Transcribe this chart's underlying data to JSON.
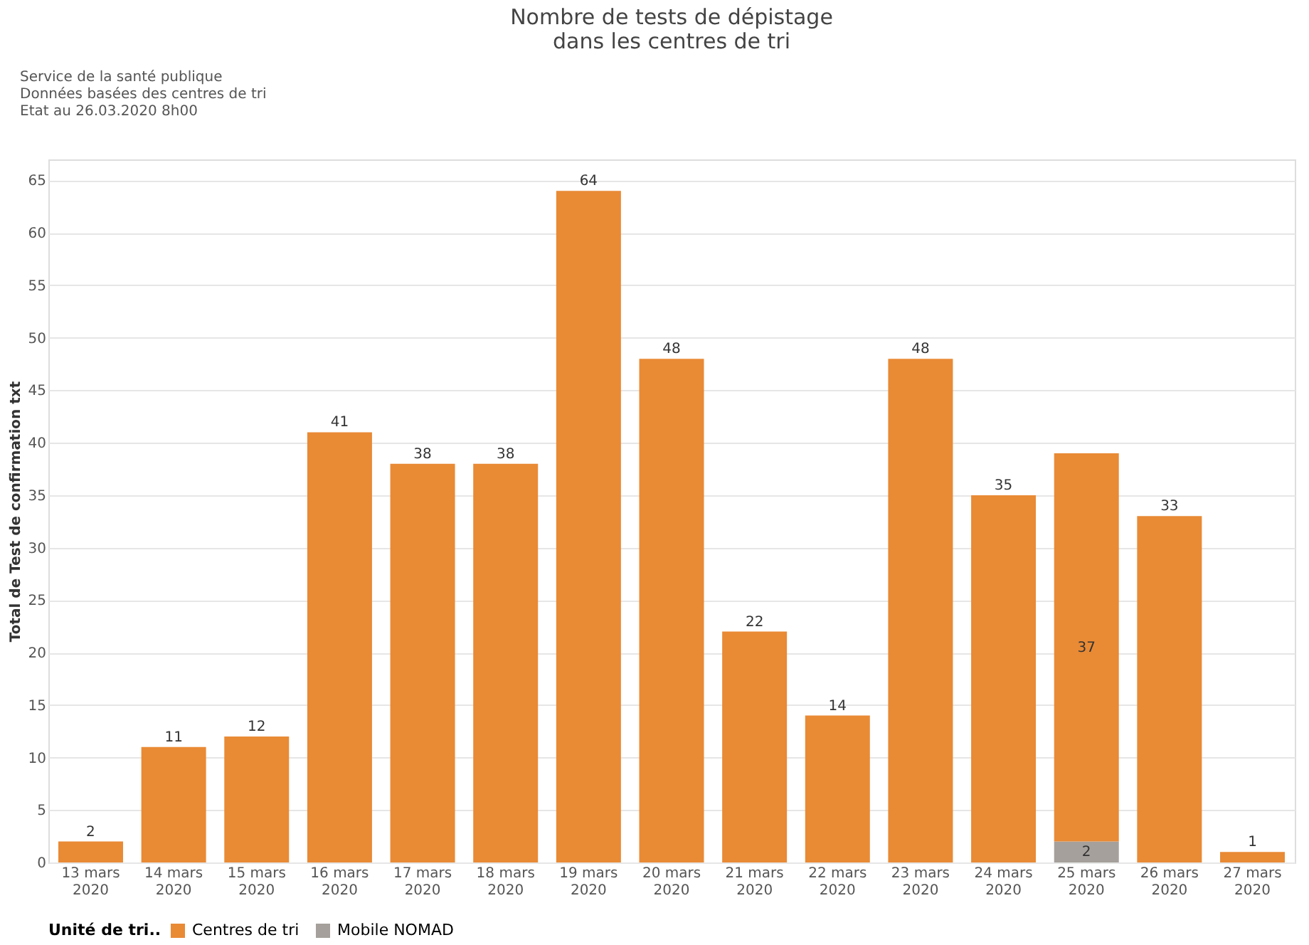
{
  "chart_data": {
    "type": "bar",
    "title": "Nombre de tests de dépistage dans les centres de tri",
    "annotations": [
      "Service de la santé publique",
      "Données basées des centres de tri",
      "Etat au 26.03.2020 8h00"
    ],
    "ylabel": "Total de Test de confirmation txt",
    "legend_title": "Unité de tri..",
    "legend": "bottom",
    "stacked": true,
    "grid": "y",
    "data_labels": true,
    "categories": [
      "13 mars 2020",
      "14 mars 2020",
      "15 mars 2020",
      "16 mars 2020",
      "17 mars 2020",
      "18 mars 2020",
      "19 mars 2020",
      "20 mars 2020",
      "21 mars 2020",
      "22 mars 2020",
      "23 mars 2020",
      "24 mars 2020",
      "25 mars 2020",
      "26 mars 2020",
      "27 mars 2020"
    ],
    "ylim": [
      0,
      67
    ],
    "yticks": [
      0,
      5,
      10,
      15,
      20,
      25,
      30,
      35,
      40,
      45,
      50,
      55,
      60,
      65
    ],
    "series": [
      {
        "name": "Mobile NOMAD",
        "color": "#a5a09b",
        "values": [
          null,
          null,
          null,
          null,
          null,
          null,
          null,
          null,
          null,
          null,
          null,
          null,
          2,
          null,
          null
        ]
      },
      {
        "name": "Centres de tri",
        "color": "#e98a35",
        "values": [
          2,
          11,
          12,
          41,
          38,
          38,
          64,
          48,
          22,
          14,
          48,
          35,
          37,
          33,
          1
        ]
      }
    ]
  }
}
